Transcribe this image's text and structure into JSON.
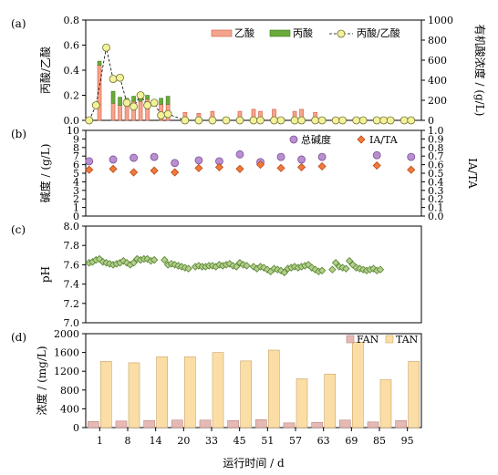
{
  "chart_data": [
    {
      "panel": "(a)",
      "type": "bar",
      "ylabel": "丙酸/乙酸",
      "ylim": [
        0,
        0.8
      ],
      "yticks": [
        "0.0",
        "0.2",
        "0.4",
        "0.6",
        "0.8"
      ],
      "y2label": "有机酸浓度 / (g/L)",
      "y2lim": [
        0,
        1000
      ],
      "y2ticks": [
        "0",
        "200",
        "400",
        "600",
        "800",
        "1000"
      ],
      "grid": false,
      "legend": "top-right",
      "x": [
        4,
        6,
        8,
        10,
        12,
        14,
        16,
        18,
        20,
        22,
        24,
        29,
        33,
        37,
        41,
        45,
        49,
        51,
        55,
        57,
        61,
        63,
        67,
        69,
        73,
        75,
        79,
        81
      ],
      "series": [
        {
          "name": "乙酸",
          "color": "#f4a58c",
          "values": [
            550,
            0,
            170,
            150,
            180,
            190,
            190,
            210,
            0,
            160,
            160,
            80,
            70,
            90,
            0,
            90,
            110,
            90,
            110,
            0,
            90,
            110,
            80,
            0,
            0,
            0,
            0,
            0
          ]
        },
        {
          "name": "丙酸",
          "color": "#6aaa3a",
          "values": [
            40,
            0,
            120,
            80,
            40,
            50,
            60,
            40,
            0,
            60,
            80,
            0,
            0,
            0,
            0,
            0,
            0,
            0,
            0,
            0,
            0,
            0,
            0,
            0,
            0,
            0,
            0,
            0
          ]
        }
      ],
      "line_series": {
        "name": "丙酸/乙酸",
        "x": [
          1,
          3,
          6,
          8,
          10,
          12,
          14,
          16,
          18,
          20,
          22,
          24,
          29,
          33,
          37,
          41,
          45,
          49,
          51,
          55,
          57,
          61,
          63,
          67,
          69,
          73,
          75,
          79,
          81,
          85,
          87,
          89,
          93,
          95
        ],
        "values": [
          0.0,
          0.12,
          0.58,
          0.33,
          0.34,
          0.14,
          0.11,
          0.2,
          0.12,
          0.14,
          0.04,
          0.05,
          0.0,
          0.0,
          0.0,
          0.0,
          0.0,
          0.0,
          0.0,
          0.0,
          0.0,
          0.0,
          0.0,
          0.0,
          0.0,
          0.0,
          0.0,
          0.0,
          0.0,
          0.0,
          0.0,
          0.0,
          0.0,
          0.0
        ]
      }
    },
    {
      "panel": "(b)",
      "type": "scatter",
      "ylabel": "碱度 / (g/L)",
      "ylim": [
        0,
        10
      ],
      "yticks": [
        "0",
        "1",
        "2",
        "3",
        "4",
        "5",
        "6",
        "7",
        "8",
        "9",
        "10"
      ],
      "y2label": "IA/TA",
      "y2lim": [
        0,
        1.0
      ],
      "y2ticks": [
        "0.0",
        "0.1",
        "0.2",
        "0.3",
        "0.4",
        "0.5",
        "0.6",
        "0.7",
        "0.8",
        "0.9",
        "1.0"
      ],
      "legend": "top-right",
      "series": [
        {
          "name": "总碱度",
          "color": "#b98fd0",
          "x": [
            1,
            8,
            14,
            20,
            26,
            33,
            39,
            45,
            51,
            57,
            63,
            69,
            85,
            95
          ],
          "values": [
            6.4,
            6.6,
            6.8,
            6.9,
            6.2,
            6.5,
            6.4,
            7.2,
            6.3,
            6.9,
            6.6,
            6.9,
            7.1,
            6.9
          ]
        },
        {
          "name": "IA/TA",
          "color": "#f07a3c",
          "x": [
            1,
            8,
            14,
            20,
            26,
            33,
            39,
            45,
            51,
            57,
            63,
            69,
            85,
            95
          ],
          "values": [
            0.54,
            0.55,
            0.51,
            0.53,
            0.51,
            0.56,
            0.57,
            0.55,
            0.6,
            0.56,
            0.57,
            0.58,
            0.59,
            0.54
          ]
        }
      ]
    },
    {
      "panel": "(c)",
      "type": "scatter",
      "ylabel": "pH",
      "ylim": [
        7.0,
        8.0
      ],
      "yticks": [
        "7.0",
        "7.2",
        "7.4",
        "7.6",
        "7.8",
        "8.0"
      ],
      "series": [
        {
          "name": "pH",
          "color": "#5e8a36",
          "x": [
            1,
            2,
            3,
            4,
            5,
            6,
            7,
            8,
            9,
            10,
            11,
            12,
            13,
            14,
            15,
            16,
            17,
            18,
            19,
            20,
            23,
            24,
            25,
            26,
            27,
            28,
            29,
            30,
            32,
            33,
            34,
            35,
            36,
            37,
            38,
            39,
            40,
            41,
            42,
            43,
            44,
            45,
            46,
            47,
            49,
            50,
            51,
            52,
            53,
            54,
            55,
            56,
            57,
            58,
            59,
            60,
            61,
            62,
            63,
            64,
            65,
            66,
            67,
            68,
            69,
            72,
            73,
            74,
            75,
            76,
            77,
            78,
            79,
            80,
            81,
            82,
            83,
            84,
            85,
            86
          ],
          "values": [
            7.62,
            7.63,
            7.65,
            7.66,
            7.63,
            7.62,
            7.61,
            7.6,
            7.61,
            7.62,
            7.64,
            7.62,
            7.6,
            7.62,
            7.66,
            7.65,
            7.66,
            7.66,
            7.64,
            7.65,
            7.65,
            7.6,
            7.61,
            7.6,
            7.59,
            7.58,
            7.57,
            7.56,
            7.58,
            7.59,
            7.58,
            7.58,
            7.59,
            7.59,
            7.58,
            7.6,
            7.59,
            7.6,
            7.61,
            7.59,
            7.58,
            7.62,
            7.6,
            7.59,
            7.58,
            7.56,
            7.58,
            7.57,
            7.55,
            7.53,
            7.56,
            7.55,
            7.54,
            7.52,
            7.56,
            7.57,
            7.58,
            7.57,
            7.58,
            7.59,
            7.6,
            7.57,
            7.55,
            7.53,
            7.54,
            7.55,
            7.62,
            7.58,
            7.57,
            7.56,
            7.64,
            7.6,
            7.57,
            7.56,
            7.55,
            7.54,
            7.55,
            7.56,
            7.54,
            7.55
          ]
        }
      ]
    },
    {
      "panel": "(d)",
      "type": "bar",
      "ylabel": "浓度 / (mg/L)",
      "ylim": [
        0,
        2000
      ],
      "yticks": [
        "0",
        "400",
        "800",
        "1200",
        "1600",
        "2000"
      ],
      "xlabel": "运行时间 / d",
      "categories": [
        "1",
        "8",
        "14",
        "20",
        "33",
        "45",
        "51",
        "57",
        "63",
        "69",
        "85",
        "95"
      ],
      "legend": "top-right",
      "series": [
        {
          "name": "FAN",
          "color": "#e6b9b4",
          "values": [
            130,
            140,
            150,
            160,
            160,
            150,
            170,
            100,
            110,
            160,
            120,
            150
          ]
        },
        {
          "name": "TAN",
          "color": "#fbdea6",
          "values": [
            1410,
            1380,
            1510,
            1510,
            1600,
            1420,
            1650,
            1040,
            1140,
            1820,
            1020,
            1410
          ]
        }
      ]
    }
  ]
}
